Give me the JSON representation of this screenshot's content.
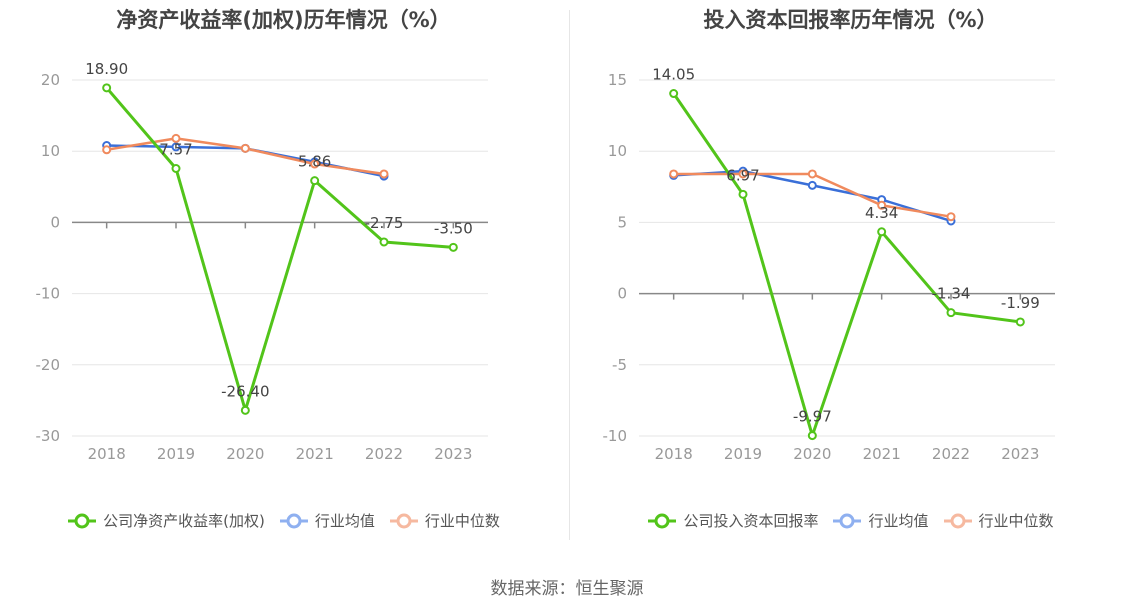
{
  "chart_data": [
    {
      "type": "line",
      "title": "净资产收益率(加权)历年情况（%）",
      "categories": [
        "2018",
        "2019",
        "2020",
        "2021",
        "2022",
        "2023"
      ],
      "ylim": [
        -30,
        20
      ],
      "yticks": [
        "20",
        "10",
        "0",
        "-10",
        "-20",
        "-30"
      ],
      "grid": true,
      "legend_position": "bottom",
      "series": [
        {
          "name": "公司净资产收益率(加权)",
          "color": "#52c41a",
          "values": [
            18.9,
            7.57,
            -26.4,
            5.86,
            -2.75,
            -3.5
          ],
          "labels": [
            "18.90",
            "7.57",
            "-26.40",
            "5.86",
            "-2.75",
            "-3.50"
          ]
        },
        {
          "name": "行业均值",
          "color": "#3a6fd8",
          "values": [
            10.8,
            10.6,
            10.4,
            8.5,
            6.5,
            null
          ]
        },
        {
          "name": "行业中位数",
          "color": "#f08a5d",
          "values": [
            10.2,
            11.8,
            10.4,
            8.2,
            6.8,
            null
          ]
        }
      ]
    },
    {
      "type": "line",
      "title": "投入资本回报率历年情况（%）",
      "categories": [
        "2018",
        "2019",
        "2020",
        "2021",
        "2022",
        "2023"
      ],
      "ylim": [
        -10,
        15
      ],
      "yticks": [
        "15",
        "10",
        "5",
        "0",
        "-5",
        "-10"
      ],
      "grid": true,
      "legend_position": "bottom",
      "series": [
        {
          "name": "公司投入资本回报率",
          "color": "#52c41a",
          "values": [
            14.05,
            6.97,
            -9.97,
            4.34,
            -1.34,
            -1.99
          ],
          "labels": [
            "14.05",
            "6.97",
            "-9.97",
            "4.34",
            "-1.34",
            "-1.99"
          ]
        },
        {
          "name": "行业均值",
          "color": "#3a6fd8",
          "values": [
            8.3,
            8.6,
            7.6,
            6.6,
            5.1,
            null
          ]
        },
        {
          "name": "行业中位数",
          "color": "#f08a5d",
          "values": [
            8.4,
            8.4,
            8.4,
            6.2,
            5.4,
            null
          ]
        }
      ]
    }
  ],
  "legend_colors": {
    "company": "#52c41a",
    "mean": "#8fb0f0",
    "median": "#f6b9a0"
  },
  "source": "数据来源：恒生聚源"
}
